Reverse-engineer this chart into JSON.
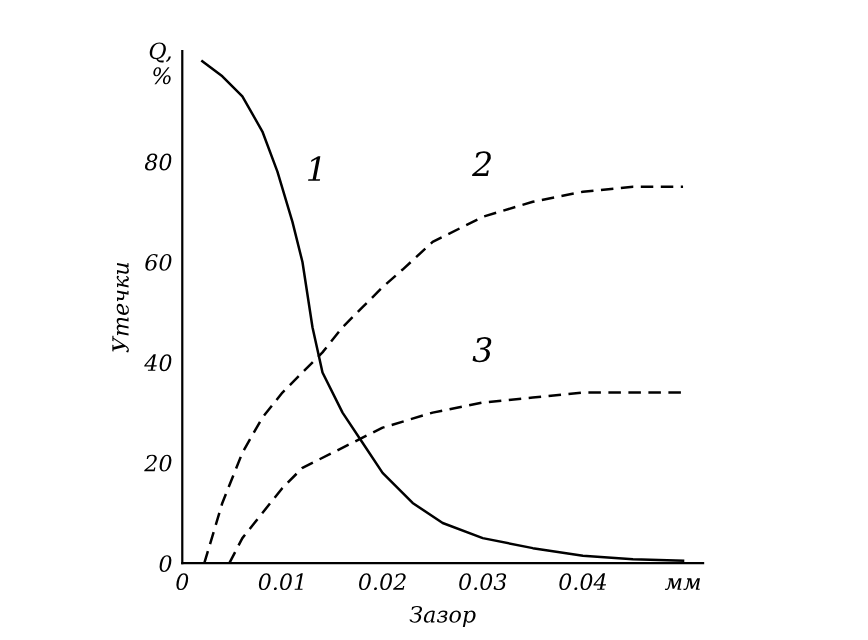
{
  "chart_data": {
    "type": "line",
    "xlabel": "Зазор",
    "ylabel": "Утечки",
    "xlim": [
      0,
      0.052
    ],
    "ylim": [
      0,
      102
    ],
    "xticks": [
      0,
      0.01,
      0.02,
      0.03,
      0.04,
      {
        "value": 0.05,
        "label": "мм"
      }
    ],
    "yticks": [
      0,
      20,
      40,
      60,
      80,
      {
        "value": 100,
        "label": "Q,\n%"
      }
    ],
    "grid": false,
    "legend": false,
    "marker": "none",
    "series": [
      {
        "name": "1",
        "color": "#000000",
        "line_style": "solid",
        "x": [
          0.002,
          0.004,
          0.006,
          0.008,
          0.0095,
          0.011,
          0.012,
          0.013,
          0.014,
          0.016,
          0.018,
          0.02,
          0.023,
          0.026,
          0.03,
          0.035,
          0.04,
          0.045,
          0.05
        ],
        "values": [
          100,
          97,
          93,
          86,
          78,
          68,
          60,
          47,
          38,
          30,
          24,
          18,
          12,
          8,
          5,
          3,
          1.5,
          0.8,
          0.5
        ]
      },
      {
        "name": "2",
        "color": "#000000",
        "line_style": "dashed",
        "x": [
          0.0022,
          0.004,
          0.006,
          0.008,
          0.01,
          0.012,
          0.014,
          0.016,
          0.018,
          0.02,
          0.022,
          0.025,
          0.03,
          0.035,
          0.04,
          0.045,
          0.05
        ],
        "values": [
          0,
          12,
          22,
          29,
          34,
          38,
          42,
          47,
          51,
          55,
          58.5,
          64,
          69,
          72,
          74,
          75,
          75
        ]
      },
      {
        "name": "3",
        "color": "#000000",
        "line_style": "dashed",
        "x": [
          0.0047,
          0.006,
          0.008,
          0.01,
          0.012,
          0.015,
          0.018,
          0.02,
          0.025,
          0.03,
          0.035,
          0.04,
          0.045,
          0.05
        ],
        "values": [
          0,
          5,
          10,
          15,
          19,
          22,
          25,
          27,
          30,
          32,
          33,
          34,
          34,
          34
        ]
      }
    ]
  }
}
